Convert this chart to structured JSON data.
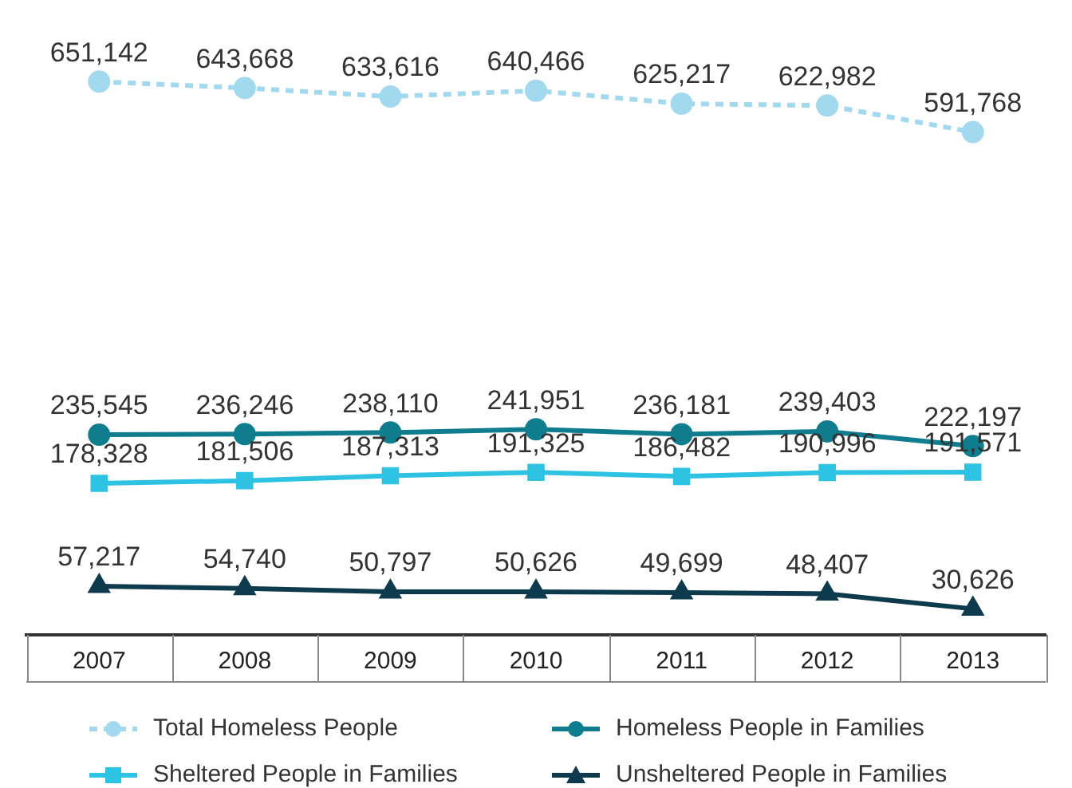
{
  "chart_data": {
    "type": "line",
    "categories": [
      "2007",
      "2008",
      "2009",
      "2010",
      "2011",
      "2012",
      "2013"
    ],
    "series": [
      {
        "name": "Total Homeless People",
        "color": "#a3d9ee",
        "marker": "circle",
        "line_style": "dashed",
        "values": [
          651142,
          643668,
          633616,
          640466,
          625217,
          622982,
          591768
        ],
        "value_labels": [
          "651,142",
          "643,668",
          "633,616",
          "640,466",
          "625,217",
          "622,982",
          "591,768"
        ]
      },
      {
        "name": "Homeless People in Families",
        "color": "#0f7d8e",
        "marker": "circle",
        "line_style": "solid",
        "values": [
          235545,
          236246,
          238110,
          241951,
          236181,
          239403,
          222197
        ],
        "value_labels": [
          "235,545",
          "236,246",
          "238,110",
          "241,951",
          "236,181",
          "239,403",
          "222,197"
        ]
      },
      {
        "name": "Sheltered People in Families",
        "color": "#2ec2e3",
        "marker": "square",
        "line_style": "solid",
        "values": [
          178328,
          181506,
          187313,
          191325,
          186482,
          190996,
          191571
        ],
        "value_labels": [
          "178,328",
          "181,506",
          "187,313",
          "191,325",
          "186,482",
          "190,996",
          "191,571"
        ]
      },
      {
        "name": "Unsheltered People in Families",
        "color": "#0e3a4d",
        "marker": "triangle",
        "line_style": "solid",
        "values": [
          57217,
          54740,
          50797,
          50626,
          49699,
          48407,
          30626
        ],
        "value_labels": [
          "57,217",
          "54,740",
          "50,797",
          "50,626",
          "49,699",
          "48,407",
          "30,626"
        ]
      }
    ],
    "legend": "bottom",
    "grid": false
  }
}
